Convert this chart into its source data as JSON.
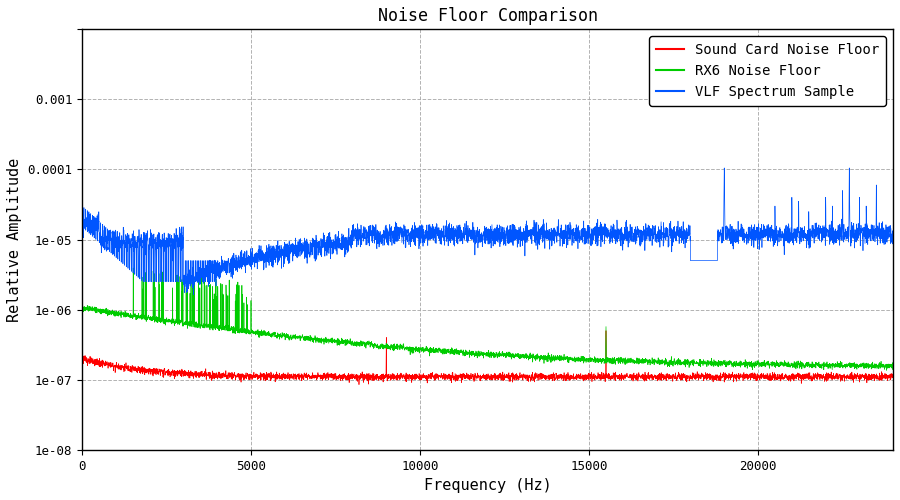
{
  "title": "Noise Floor Comparison",
  "xlabel": "Frequency (Hz)",
  "ylabel": "Relative Amplitude",
  "xlim": [
    0,
    24000
  ],
  "ylim_log": [
    1e-08,
    0.01
  ],
  "xticks": [
    0,
    5000,
    10000,
    15000,
    20000
  ],
  "yticks": [
    1e-08,
    1e-07,
    1e-06,
    1e-05,
    0.0001,
    0.001,
    0.01
  ],
  "ytick_labels": [
    "1e-08",
    "1e-07",
    "1e-06",
    "1e-05",
    "0.0001",
    "0.001",
    ""
  ],
  "legend_labels": [
    "Sound Card Noise Floor",
    "RX6 Noise Floor",
    "VLF Spectrum Sample"
  ],
  "legend_colors": [
    "#ff0000",
    "#00cc00",
    "#0055ff"
  ],
  "grid_color": "#aaaaaa",
  "background_color": "#ffffff",
  "title_fontsize": 12,
  "label_fontsize": 11,
  "legend_fontsize": 10,
  "n_points": 4800,
  "sample_rate": 24000
}
